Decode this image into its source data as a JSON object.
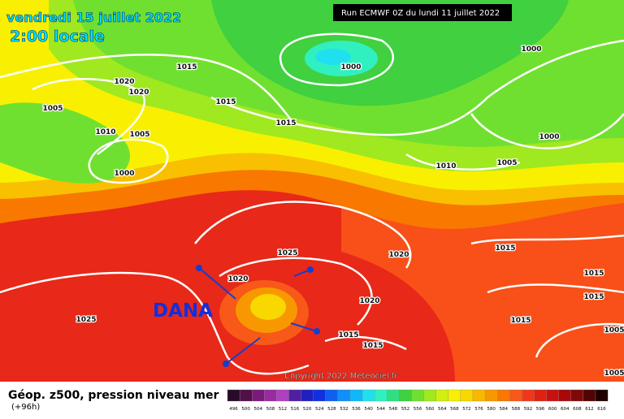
{
  "header": {
    "date": "vendredi 15 juillet 2022",
    "time": "2:00 locale",
    "run": "Run ECMWF 0Z du lundi 11 juillet 2022"
  },
  "isobar_labels": [
    "1015",
    "1020",
    "1020",
    "1005",
    "1015",
    "1015",
    "1000",
    "1000",
    "1010",
    "1005",
    "1000",
    "1000",
    "1010",
    "1005",
    "1025",
    "1020",
    "1015",
    "1020",
    "1020",
    "1015",
    "1015",
    "1025",
    "1015",
    "1015",
    "1015",
    "1005",
    "1005"
  ],
  "annotation": "DANA",
  "copyright": "Copyright 2022 Meteociel.fr",
  "legend": {
    "title": "Géop. z500, pression niveau mer",
    "lead": "(+96h)",
    "labels": [
      "496",
      "500",
      "504",
      "508",
      "512",
      "516",
      "520",
      "524",
      "528",
      "532",
      "536",
      "540",
      "544",
      "548",
      "552",
      "556",
      "560",
      "564",
      "568",
      "572",
      "576",
      "580",
      "584",
      "588",
      "592",
      "596",
      "600",
      "604",
      "608",
      "612",
      "616"
    ],
    "colors": [
      "#2a0a2a",
      "#50104a",
      "#7a1a7a",
      "#9a2aa0",
      "#b040c0",
      "#5020a0",
      "#2020c0",
      "#1030e0",
      "#1060f0",
      "#1090f8",
      "#10b8f8",
      "#20e0f0",
      "#30f0c0",
      "#30e080",
      "#40d040",
      "#70e030",
      "#a0e820",
      "#d0f010",
      "#f8f000",
      "#f8d800",
      "#f8b800",
      "#f89800",
      "#f87800",
      "#f85818",
      "#f03818",
      "#e02010",
      "#c81010",
      "#a80808",
      "#800808",
      "#500404",
      "#200000"
    ]
  }
}
